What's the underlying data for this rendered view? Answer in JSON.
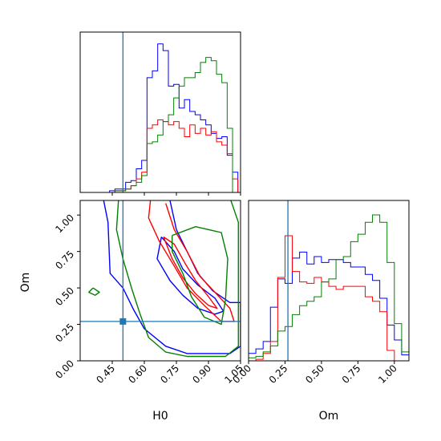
{
  "figure": {
    "h0_label": "H0",
    "om_label": "Om"
  },
  "chart_data": [
    {
      "type": "histogram",
      "panel": "H0 marginal",
      "xlim": [
        0.3,
        1.05
      ],
      "truth": 0.5,
      "truth_color": "#1f77b4",
      "bins": [
        0.325,
        0.35,
        0.375,
        0.4,
        0.425,
        0.45,
        0.475,
        0.5,
        0.525,
        0.55,
        0.575,
        0.6,
        0.625,
        0.65,
        0.675,
        0.7,
        0.725,
        0.75,
        0.775,
        0.8,
        0.825,
        0.85,
        0.875,
        0.9,
        0.925,
        0.95,
        0.975,
        1.0,
        1.025
      ],
      "series": [
        {
          "color": "#0000ff",
          "values": [
            0,
            0,
            0,
            0,
            0,
            0.01,
            0.02,
            0.02,
            0.06,
            0.07,
            0.14,
            0.19,
            0.68,
            0.72,
            0.88,
            0.84,
            0.63,
            0.64,
            0.5,
            0.55,
            0.48,
            0.46,
            0.43,
            0.4,
            0.35,
            0.32,
            0.33,
            0.22,
            0.12
          ]
        },
        {
          "color": "#ff0000",
          "values": [
            0,
            0,
            0,
            0,
            0,
            0,
            0.01,
            0.01,
            0.02,
            0.04,
            0.08,
            0.12,
            0.38,
            0.4,
            0.43,
            0.42,
            0.4,
            0.42,
            0.38,
            0.33,
            0.4,
            0.35,
            0.38,
            0.34,
            0.36,
            0.3,
            0.28,
            0.23,
            0.08
          ]
        },
        {
          "color": "#008000",
          "values": [
            0,
            0,
            0,
            0,
            0,
            0,
            0.01,
            0.01,
            0.02,
            0.04,
            0.06,
            0.1,
            0.29,
            0.3,
            0.34,
            0.42,
            0.46,
            0.56,
            0.63,
            0.68,
            0.68,
            0.71,
            0.77,
            0.8,
            0.78,
            0.7,
            0.65,
            0.38,
            0
          ]
        }
      ]
    },
    {
      "type": "contour",
      "panel": "H0 vs Om",
      "xlim": [
        0.3,
        1.05
      ],
      "ylim": [
        0.0,
        1.1
      ],
      "xlabel": "H0",
      "ylabel": "Om",
      "xticks": [
        "0.45",
        "0.60",
        "0.75",
        "0.90",
        "1.05"
      ],
      "yticks": [
        "0.00",
        "0.25",
        "0.50",
        "0.75",
        "1.00"
      ],
      "truth": [
        0.5,
        0.27
      ],
      "truth_color": "#1f77b4",
      "series": [
        {
          "color": "#0000ff",
          "contours": [
            [
              [
                0.41,
                1.1
              ],
              [
                0.43,
                0.95
              ],
              [
                0.44,
                0.6
              ],
              [
                0.5,
                0.5
              ],
              [
                0.55,
                0.35
              ],
              [
                0.6,
                0.22
              ],
              [
                0.7,
                0.1
              ],
              [
                0.8,
                0.05
              ],
              [
                1.0,
                0.05
              ],
              [
                1.05,
                0.1
              ],
              [
                1.05,
                0.4
              ],
              [
                1.0,
                0.4
              ],
              [
                0.92,
                0.48
              ],
              [
                0.85,
                0.6
              ],
              [
                0.8,
                0.75
              ],
              [
                0.75,
                0.9
              ],
              [
                0.72,
                1.1
              ]
            ],
            [
              [
                0.68,
                0.85
              ],
              [
                0.66,
                0.7
              ],
              [
                0.72,
                0.55
              ],
              [
                0.78,
                0.45
              ],
              [
                0.85,
                0.36
              ],
              [
                0.93,
                0.32
              ],
              [
                0.97,
                0.34
              ],
              [
                0.93,
                0.43
              ],
              [
                0.85,
                0.52
              ],
              [
                0.78,
                0.63
              ],
              [
                0.74,
                0.75
              ],
              [
                0.68,
                0.85
              ]
            ]
          ]
        },
        {
          "color": "#ff0000",
          "contours": [
            [
              [
                0.63,
                1.12
              ],
              [
                0.62,
                0.98
              ],
              [
                0.67,
                0.82
              ],
              [
                0.74,
                0.65
              ],
              [
                0.8,
                0.5
              ],
              [
                0.88,
                0.38
              ],
              [
                0.96,
                0.27
              ],
              [
                1.02,
                0.27
              ],
              [
                1.0,
                0.36
              ],
              [
                0.93,
                0.47
              ],
              [
                0.86,
                0.58
              ],
              [
                0.8,
                0.75
              ],
              [
                0.74,
                0.9
              ],
              [
                0.7,
                1.08
              ]
            ],
            [
              [
                0.69,
                0.85
              ],
              [
                0.73,
                0.7
              ],
              [
                0.78,
                0.57
              ],
              [
                0.84,
                0.46
              ],
              [
                0.9,
                0.38
              ],
              [
                0.94,
                0.36
              ],
              [
                0.9,
                0.44
              ],
              [
                0.84,
                0.55
              ],
              [
                0.79,
                0.67
              ],
              [
                0.74,
                0.8
              ],
              [
                0.69,
                0.85
              ]
            ]
          ]
        },
        {
          "color": "#008000",
          "contours": [
            [
              [
                0.48,
                1.12
              ],
              [
                0.47,
                0.9
              ],
              [
                0.5,
                0.7
              ],
              [
                0.54,
                0.5
              ],
              [
                0.58,
                0.32
              ],
              [
                0.62,
                0.16
              ],
              [
                0.7,
                0.06
              ],
              [
                0.8,
                0.03
              ],
              [
                0.98,
                0.03
              ],
              [
                1.04,
                0.1
              ],
              [
                1.04,
                0.95
              ],
              [
                1.0,
                1.12
              ]
            ],
            [
              [
                0.73,
                0.86
              ],
              [
                0.84,
                0.92
              ],
              [
                0.96,
                0.88
              ],
              [
                0.99,
                0.7
              ],
              [
                0.98,
                0.42
              ],
              [
                0.96,
                0.25
              ],
              [
                0.88,
                0.3
              ],
              [
                0.82,
                0.44
              ],
              [
                0.78,
                0.6
              ],
              [
                0.73,
                0.75
              ],
              [
                0.73,
                0.86
              ]
            ],
            [
              [
                0.36,
                0.5
              ],
              [
                0.39,
                0.47
              ],
              [
                0.37,
                0.45
              ],
              [
                0.34,
                0.47
              ],
              [
                0.36,
                0.5
              ]
            ]
          ]
        }
      ]
    },
    {
      "type": "histogram",
      "panel": "Om marginal",
      "xlim": [
        0.0,
        1.1
      ],
      "xlabel": "Om",
      "xticks": [
        "0.00",
        "0.25",
        "0.50",
        "0.75",
        "1.00"
      ],
      "truth": 0.27,
      "truth_color": "#1f77b4",
      "bins": [
        0.025,
        0.075,
        0.125,
        0.175,
        0.225,
        0.275,
        0.325,
        0.375,
        0.425,
        0.475,
        0.525,
        0.575,
        0.625,
        0.675,
        0.725,
        0.775,
        0.825,
        0.875,
        0.925,
        0.975,
        1.025,
        1.075
      ],
      "series": [
        {
          "color": "#0000ff",
          "values": [
            0.05,
            0.08,
            0.13,
            0.36,
            0.55,
            0.52,
            0.69,
            0.73,
            0.65,
            0.7,
            0.66,
            0.68,
            0.68,
            0.66,
            0.63,
            0.63,
            0.58,
            0.54,
            0.42,
            0.24,
            0.14,
            0.04
          ]
        },
        {
          "color": "#ff0000",
          "values": [
            0,
            0.01,
            0.05,
            0.13,
            0.56,
            0.84,
            0.6,
            0.53,
            0.52,
            0.56,
            0.53,
            0.5,
            0.48,
            0.5,
            0.5,
            0.5,
            0.43,
            0.4,
            0.33,
            0.07,
            0,
            0
          ]
        },
        {
          "color": "#008000",
          "values": [
            0.02,
            0.03,
            0.06,
            0.1,
            0.2,
            0.23,
            0.31,
            0.37,
            0.4,
            0.43,
            0.53,
            0.55,
            0.68,
            0.7,
            0.8,
            0.85,
            0.93,
            0.98,
            0.93,
            0.66,
            0.25,
            0.06
          ]
        }
      ]
    }
  ]
}
